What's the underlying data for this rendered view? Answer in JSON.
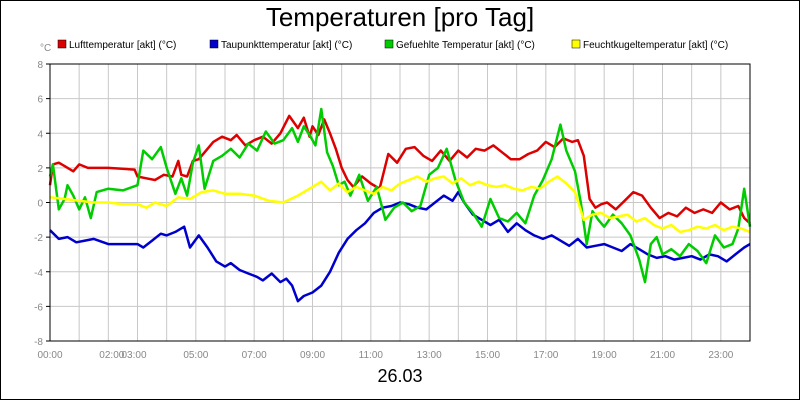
{
  "chart_data": {
    "type": "line",
    "title": "Temperaturen [pro Tag]",
    "date_label": "26.03",
    "y_unit": "°C",
    "ylim": [
      -8,
      8
    ],
    "y_ticks": [
      -8,
      -6,
      -4,
      -2,
      0,
      2,
      4,
      6,
      8
    ],
    "x_range": [
      0,
      24
    ],
    "x_tick_labels": [
      {
        "h": 0,
        "label": "00:00"
      },
      {
        "h": 2,
        "label": "02:00"
      },
      {
        "h": 3,
        "label": "03:00"
      },
      {
        "h": 5,
        "label": "05:00"
      },
      {
        "h": 7,
        "label": "07:00"
      },
      {
        "h": 9,
        "label": "09:00"
      },
      {
        "h": 11,
        "label": "11:00"
      },
      {
        "h": 13,
        "label": "13:00"
      },
      {
        "h": 15,
        "label": "15:00"
      },
      {
        "h": 17,
        "label": "17:00"
      },
      {
        "h": 19,
        "label": "19:00"
      },
      {
        "h": 21,
        "label": "21:00"
      },
      {
        "h": 23,
        "label": "23:00"
      }
    ],
    "grid": true,
    "legend_position": "top",
    "series": [
      {
        "name": "Lufttemperatur [akt] (°C)",
        "color": "#dd0000",
        "x": [
          0,
          0.1,
          0.3,
          0.5,
          0.8,
          1.0,
          1.3,
          2.0,
          2.9,
          3.0,
          3.3,
          3.6,
          3.9,
          4.2,
          4.4,
          4.5,
          4.7,
          4.9,
          5.1,
          5.3,
          5.6,
          5.9,
          6.2,
          6.4,
          6.7,
          7.0,
          7.3,
          7.6,
          7.9,
          8.2,
          8.5,
          8.7,
          8.9,
          9.0,
          9.2,
          9.4,
          9.6,
          9.8,
          10.0,
          10.2,
          10.4,
          10.7,
          11.0,
          11.3,
          11.6,
          11.9,
          12.2,
          12.5,
          12.8,
          13.1,
          13.4,
          13.7,
          14.0,
          14.3,
          14.6,
          14.9,
          15.2,
          15.5,
          15.8,
          16.1,
          16.4,
          16.7,
          17.0,
          17.3,
          17.6,
          17.9,
          18.1,
          18.3,
          18.5,
          18.7,
          18.9,
          19.1,
          19.4,
          19.7,
          20.0,
          20.3,
          20.6,
          20.9,
          21.2,
          21.5,
          21.8,
          22.1,
          22.4,
          22.7,
          23.0,
          23.3,
          23.6,
          23.8,
          24.0
        ],
        "values": [
          1.0,
          2.2,
          2.3,
          2.1,
          1.8,
          2.2,
          2.0,
          2.0,
          1.9,
          1.5,
          1.4,
          1.3,
          1.6,
          1.5,
          2.4,
          1.6,
          1.5,
          2.4,
          2.5,
          2.9,
          3.5,
          3.8,
          3.6,
          3.9,
          3.3,
          3.6,
          3.8,
          3.4,
          4.0,
          5.0,
          4.3,
          4.9,
          3.8,
          4.4,
          3.9,
          4.8,
          4.0,
          3.1,
          2.0,
          1.3,
          0.9,
          1.5,
          1.1,
          0.8,
          2.8,
          2.3,
          3.1,
          3.2,
          2.7,
          2.4,
          3.0,
          2.4,
          3.0,
          2.6,
          3.1,
          3.0,
          3.3,
          2.9,
          2.5,
          2.5,
          2.8,
          3.0,
          3.5,
          3.2,
          3.7,
          3.5,
          3.6,
          2.7,
          0.2,
          -0.3,
          -0.1,
          0.0,
          -0.4,
          0.1,
          0.6,
          0.4,
          -0.3,
          -0.9,
          -0.6,
          -0.8,
          -0.3,
          -0.6,
          -0.4,
          -0.6,
          0.0,
          -0.4,
          -0.2,
          -0.9,
          -1.2
        ]
      },
      {
        "name": "Taupunkttemperatur [akt] (°C)",
        "color": "#0000cc",
        "x": [
          0,
          0.3,
          0.6,
          0.9,
          1.2,
          1.5,
          2.0,
          2.5,
          3.0,
          3.2,
          3.5,
          3.8,
          4.0,
          4.3,
          4.6,
          4.8,
          5.1,
          5.4,
          5.7,
          6.0,
          6.2,
          6.5,
          6.8,
          7.1,
          7.3,
          7.6,
          7.9,
          8.1,
          8.3,
          8.5,
          8.7,
          9.0,
          9.3,
          9.6,
          9.9,
          10.2,
          10.5,
          10.8,
          11.1,
          11.4,
          11.7,
          12.0,
          12.3,
          12.6,
          12.9,
          13.2,
          13.5,
          13.8,
          14.0,
          14.2,
          14.5,
          14.8,
          15.1,
          15.4,
          15.7,
          16.0,
          16.3,
          16.6,
          16.9,
          17.2,
          17.5,
          17.8,
          18.1,
          18.4,
          18.7,
          19.0,
          19.3,
          19.6,
          19.9,
          20.2,
          20.5,
          20.8,
          21.1,
          21.4,
          21.7,
          22.0,
          22.3,
          22.6,
          22.9,
          23.2,
          23.5,
          23.8,
          24.0
        ],
        "values": [
          -1.6,
          -2.1,
          -2.0,
          -2.3,
          -2.2,
          -2.1,
          -2.4,
          -2.4,
          -2.4,
          -2.6,
          -2.2,
          -1.8,
          -1.9,
          -1.7,
          -1.4,
          -2.6,
          -1.9,
          -2.6,
          -3.4,
          -3.7,
          -3.5,
          -3.9,
          -4.1,
          -4.3,
          -4.5,
          -4.1,
          -4.6,
          -4.4,
          -4.8,
          -5.7,
          -5.4,
          -5.2,
          -4.8,
          -4.0,
          -2.9,
          -2.1,
          -1.6,
          -1.2,
          -0.6,
          -0.3,
          -0.2,
          0.0,
          -0.1,
          -0.3,
          -0.4,
          0.0,
          0.4,
          0.1,
          0.6,
          0.0,
          -0.7,
          -1.0,
          -1.3,
          -1.0,
          -1.7,
          -1.2,
          -1.6,
          -1.9,
          -2.1,
          -1.9,
          -2.2,
          -2.5,
          -2.1,
          -2.6,
          -2.5,
          -2.4,
          -2.6,
          -2.8,
          -2.4,
          -2.7,
          -3.0,
          -3.2,
          -3.1,
          -3.3,
          -3.2,
          -3.1,
          -3.3,
          -3.0,
          -3.1,
          -3.4,
          -3.0,
          -2.6,
          -2.4
        ]
      },
      {
        "name": "Gefuehlte Temperatur [akt] (°C)",
        "color": "#00cc00",
        "x": [
          0,
          0.1,
          0.3,
          0.5,
          0.6,
          0.8,
          1.0,
          1.2,
          1.4,
          1.6,
          2.0,
          2.5,
          3.0,
          3.2,
          3.5,
          3.8,
          4.0,
          4.3,
          4.5,
          4.7,
          4.9,
          5.1,
          5.3,
          5.6,
          5.9,
          6.2,
          6.5,
          6.8,
          7.1,
          7.4,
          7.7,
          8.0,
          8.3,
          8.5,
          8.7,
          8.9,
          9.1,
          9.3,
          9.5,
          9.7,
          9.9,
          10.1,
          10.3,
          10.6,
          10.9,
          11.2,
          11.5,
          11.8,
          12.1,
          12.4,
          12.7,
          13.0,
          13.3,
          13.6,
          13.9,
          14.2,
          14.5,
          14.8,
          15.1,
          15.4,
          15.7,
          16.0,
          16.3,
          16.6,
          16.9,
          17.2,
          17.5,
          17.7,
          18.0,
          18.2,
          18.4,
          18.6,
          18.8,
          19.0,
          19.3,
          19.6,
          19.9,
          20.2,
          20.4,
          20.6,
          20.8,
          21.0,
          21.3,
          21.6,
          21.9,
          22.2,
          22.5,
          22.8,
          23.1,
          23.4,
          23.6,
          23.8,
          24.0
        ],
        "values": [
          1.5,
          2.2,
          -0.4,
          0.2,
          1.0,
          0.4,
          -0.4,
          0.3,
          -0.9,
          0.6,
          0.8,
          0.7,
          1.0,
          3.0,
          2.5,
          3.2,
          2.0,
          0.5,
          1.4,
          0.4,
          2.3,
          3.3,
          0.8,
          2.4,
          2.7,
          3.1,
          2.6,
          3.4,
          3.0,
          4.1,
          3.4,
          3.6,
          4.3,
          3.5,
          4.4,
          3.9,
          3.3,
          5.4,
          2.9,
          2.1,
          1.0,
          1.2,
          0.4,
          1.6,
          0.1,
          0.9,
          -1.0,
          -0.3,
          0.0,
          -0.5,
          -0.2,
          1.6,
          2.0,
          3.1,
          1.3,
          0.0,
          -0.6,
          -1.4,
          0.2,
          -0.9,
          -1.1,
          -0.6,
          -1.2,
          0.4,
          1.3,
          2.5,
          4.5,
          3.0,
          1.8,
          0.0,
          -2.4,
          -0.5,
          -1.0,
          -1.4,
          -0.7,
          -1.2,
          -1.9,
          -3.3,
          -4.6,
          -2.4,
          -2.0,
          -3.0,
          -2.7,
          -3.1,
          -2.4,
          -2.8,
          -3.5,
          -1.9,
          -2.6,
          -2.4,
          -1.5,
          0.8,
          -1.4
        ]
      },
      {
        "name": "Feuchtkugeltemperatur [akt] (°C)",
        "color": "#ffff00",
        "x": [
          0,
          0.5,
          1.0,
          1.5,
          2.0,
          2.5,
          3.0,
          3.3,
          3.6,
          4.0,
          4.4,
          4.8,
          5.2,
          5.6,
          6.0,
          6.5,
          7.0,
          7.5,
          8.0,
          8.5,
          9.0,
          9.3,
          9.6,
          9.9,
          10.2,
          10.5,
          10.8,
          11.1,
          11.4,
          11.7,
          12.0,
          12.3,
          12.6,
          12.9,
          13.2,
          13.5,
          13.8,
          14.1,
          14.4,
          14.7,
          15.0,
          15.3,
          15.6,
          15.9,
          16.2,
          16.5,
          16.8,
          17.1,
          17.4,
          17.7,
          18.0,
          18.3,
          18.6,
          18.9,
          19.2,
          19.5,
          19.8,
          20.1,
          20.4,
          20.7,
          21.0,
          21.3,
          21.6,
          21.9,
          22.2,
          22.5,
          22.8,
          23.1,
          23.4,
          23.7,
          24.0
        ],
        "values": [
          0.3,
          0.2,
          0.1,
          0.0,
          0.0,
          -0.1,
          -0.1,
          -0.3,
          0.0,
          -0.2,
          0.3,
          0.2,
          0.6,
          0.7,
          0.5,
          0.5,
          0.4,
          0.1,
          0.0,
          0.4,
          0.9,
          1.2,
          0.7,
          1.1,
          0.6,
          0.9,
          0.7,
          0.5,
          0.9,
          0.7,
          1.1,
          1.3,
          1.5,
          1.2,
          1.4,
          1.5,
          1.1,
          1.4,
          1.0,
          1.2,
          1.0,
          0.9,
          1.0,
          0.8,
          0.7,
          0.9,
          0.8,
          1.2,
          1.5,
          1.1,
          0.6,
          -1.0,
          -0.7,
          -0.6,
          -0.9,
          -0.8,
          -0.7,
          -1.1,
          -0.9,
          -1.3,
          -1.5,
          -1.3,
          -1.7,
          -1.6,
          -1.4,
          -1.5,
          -1.3,
          -1.6,
          -1.4,
          -1.5,
          -1.7
        ]
      }
    ]
  }
}
